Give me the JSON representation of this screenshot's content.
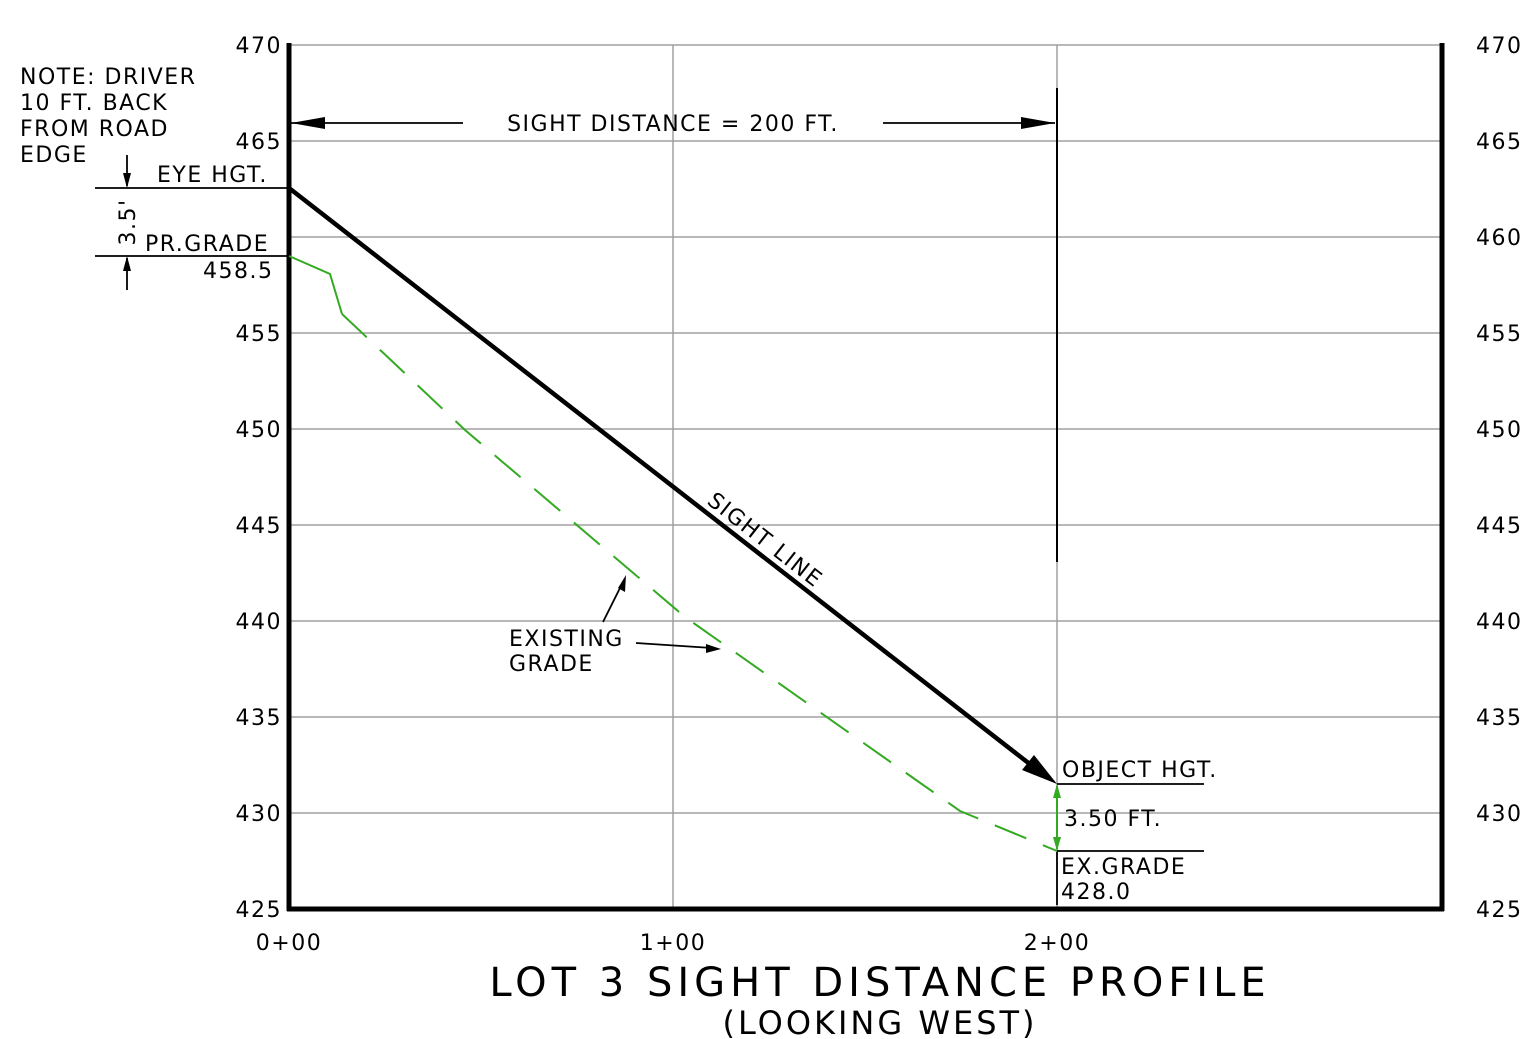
{
  "diagram": {
    "title": "LOT 3 SIGHT DISTANCE PROFILE",
    "subtitle": "(LOOKING WEST)",
    "y_ticks_left": [
      "470",
      "465",
      "460",
      "455",
      "450",
      "445",
      "440",
      "435",
      "430",
      "425"
    ],
    "y_ticks_right": [
      "470",
      "465",
      "460",
      "455",
      "450",
      "445",
      "440",
      "435",
      "430",
      "425"
    ],
    "x_ticks": [
      "0+00",
      "1+00",
      "2+00"
    ],
    "note_lines": [
      "NOTE: DRIVER",
      "10 FT. BACK",
      "FROM ROAD",
      "EDGE"
    ],
    "eye_height_label": "EYE HGT.",
    "eye_height_dim": "3.5'",
    "proposed_grade_label": "PR.GRADE",
    "proposed_grade_value": "458.5",
    "sight_distance_label": "SIGHT DISTANCE = 200 FT.",
    "sight_line_label": "SIGHT LINE",
    "existing_grade_lines": [
      "EXISTING",
      "GRADE"
    ],
    "object_height_label": "OBJECT HGT.",
    "object_height_dim": "3.50 FT.",
    "existing_grade_end_label": "EX.GRADE",
    "existing_grade_end_value": "428.0"
  },
  "colors": {
    "line": "#000000",
    "grid": "#a0a0a0",
    "existing_grade": "#33aa22"
  }
}
